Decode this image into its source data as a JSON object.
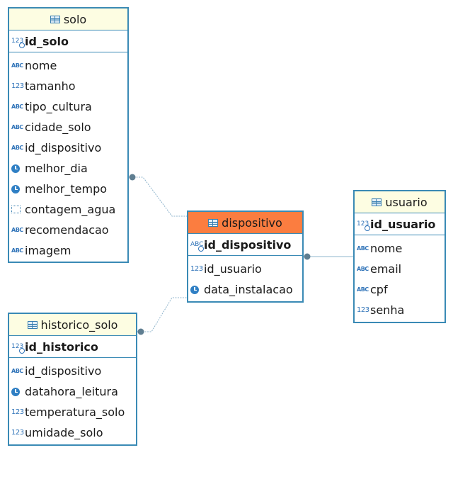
{
  "diagram": {
    "entities": [
      {
        "id": "solo",
        "name": "solo",
        "selected": false,
        "pk": {
          "name": "id_solo",
          "type": "numeric"
        },
        "columns": [
          {
            "name": "nome",
            "type": "text"
          },
          {
            "name": "tamanho",
            "type": "numeric"
          },
          {
            "name": "tipo_cultura",
            "type": "text"
          },
          {
            "name": "cidade_solo",
            "type": "text"
          },
          {
            "name": "id_dispositivo",
            "type": "text"
          },
          {
            "name": "melhor_dia",
            "type": "datetime"
          },
          {
            "name": "melhor_tempo",
            "type": "datetime"
          },
          {
            "name": "contagem_agua",
            "type": "other"
          },
          {
            "name": "recomendacao",
            "type": "text"
          },
          {
            "name": "imagem",
            "type": "text"
          }
        ]
      },
      {
        "id": "dispositivo",
        "name": "dispositivo",
        "selected": true,
        "pk": {
          "name": "id_dispositivo",
          "type": "text"
        },
        "columns": [
          {
            "name": "id_usuario",
            "type": "numeric"
          },
          {
            "name": "data_instalacao",
            "type": "datetime"
          }
        ]
      },
      {
        "id": "usuario",
        "name": "usuario",
        "selected": false,
        "pk": {
          "name": "id_usuario",
          "type": "numeric"
        },
        "columns": [
          {
            "name": "nome",
            "type": "text"
          },
          {
            "name": "email",
            "type": "text"
          },
          {
            "name": "cpf",
            "type": "text"
          },
          {
            "name": "senha",
            "type": "numeric"
          }
        ]
      },
      {
        "id": "historico",
        "name": "historico_solo",
        "selected": false,
        "pk": {
          "name": "id_historico",
          "type": "numeric"
        },
        "columns": [
          {
            "name": "id_dispositivo",
            "type": "text"
          },
          {
            "name": "datahora_leitura",
            "type": "datetime"
          },
          {
            "name": "temperatura_solo",
            "type": "numeric"
          },
          {
            "name": "umidade_solo",
            "type": "numeric"
          }
        ]
      }
    ],
    "relationships": [
      {
        "from": "solo",
        "to": "dispositivo"
      },
      {
        "from": "historico",
        "to": "dispositivo"
      },
      {
        "from": "dispositivo",
        "to": "usuario"
      }
    ],
    "icon_labels": {
      "text": "ABC",
      "numeric": "123"
    },
    "colors": {
      "border": "#3a8ab5",
      "header": "#fdfde2",
      "header_selected": "#fb7d40",
      "connector": "#5f7e91"
    }
  }
}
